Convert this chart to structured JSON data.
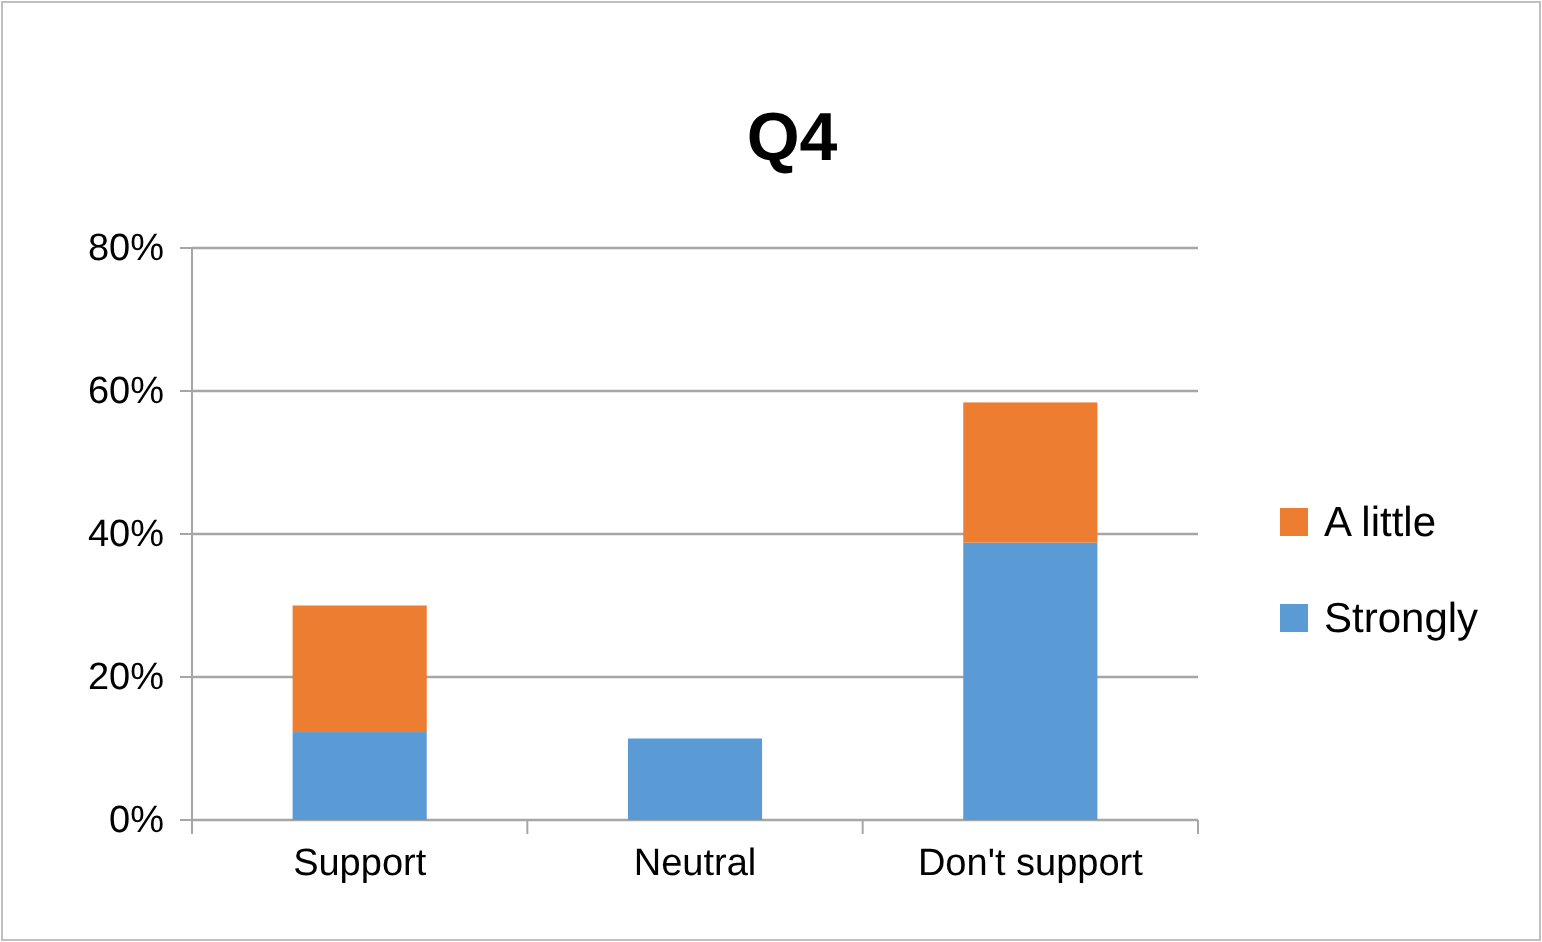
{
  "chart_data": {
    "type": "bar",
    "title": "Q4",
    "categories": [
      "Support",
      "Neutral",
      "Don't support"
    ],
    "stacked": true,
    "series": [
      {
        "name": "Strongly",
        "color": "#5b9bd5",
        "values": [
          12.3,
          11.4,
          38.8
        ]
      },
      {
        "name": "A little",
        "color": "#ed7d31",
        "values": [
          17.7,
          0,
          19.6
        ]
      }
    ],
    "ylim": [
      0,
      80
    ],
    "yticks": [
      {
        "value": 0,
        "label": "0%"
      },
      {
        "value": 20,
        "label": "20%"
      },
      {
        "value": 40,
        "label": "40%"
      },
      {
        "value": 60,
        "label": "60%"
      },
      {
        "value": 80,
        "label": "80%"
      }
    ],
    "grid": "y",
    "legend": "right"
  }
}
